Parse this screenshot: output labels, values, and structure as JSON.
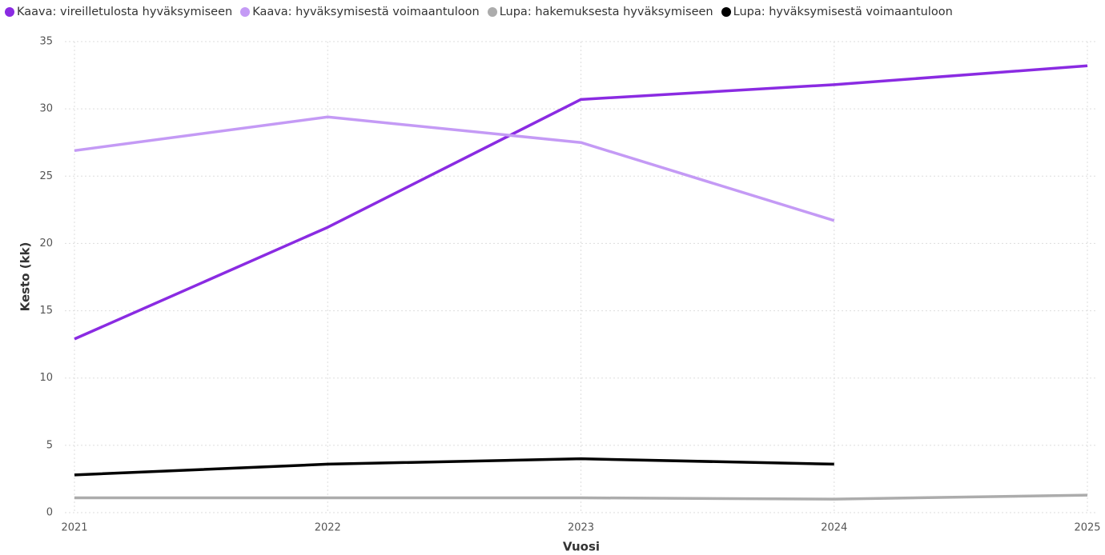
{
  "chart_data": {
    "type": "line",
    "x": [
      2021,
      2022,
      2023,
      2024,
      2025
    ],
    "xlim": [
      2021,
      2025
    ],
    "xticks": [
      2021,
      2022,
      2023,
      2024,
      2025
    ],
    "ylim": [
      0,
      35
    ],
    "yticks": [
      0,
      5,
      10,
      15,
      20,
      25,
      30,
      35
    ],
    "x_label": "Vuosi",
    "y_label": "Kesto (kk)",
    "grid": true,
    "legend": "top-left",
    "series": [
      {
        "name": "Kaava: vireilletulosta hyväksymiseen",
        "color": "#8a2be2",
        "values": [
          12.9,
          21.2,
          30.7,
          31.8,
          33.2
        ]
      },
      {
        "name": "Kaava: hyväksymisestä voimaantuloon",
        "color": "#c49af5",
        "values": [
          26.9,
          29.4,
          27.5,
          21.7,
          null
        ]
      },
      {
        "name": "Lupa: hakemuksesta hyväksymiseen",
        "color": "#acacac",
        "values": [
          1.1,
          1.1,
          1.1,
          1.0,
          1.3
        ]
      },
      {
        "name": "Lupa: hyväksymisestä voimaantuloon",
        "color": "#000000",
        "values": [
          2.8,
          3.6,
          4.0,
          3.6,
          null
        ]
      }
    ]
  }
}
